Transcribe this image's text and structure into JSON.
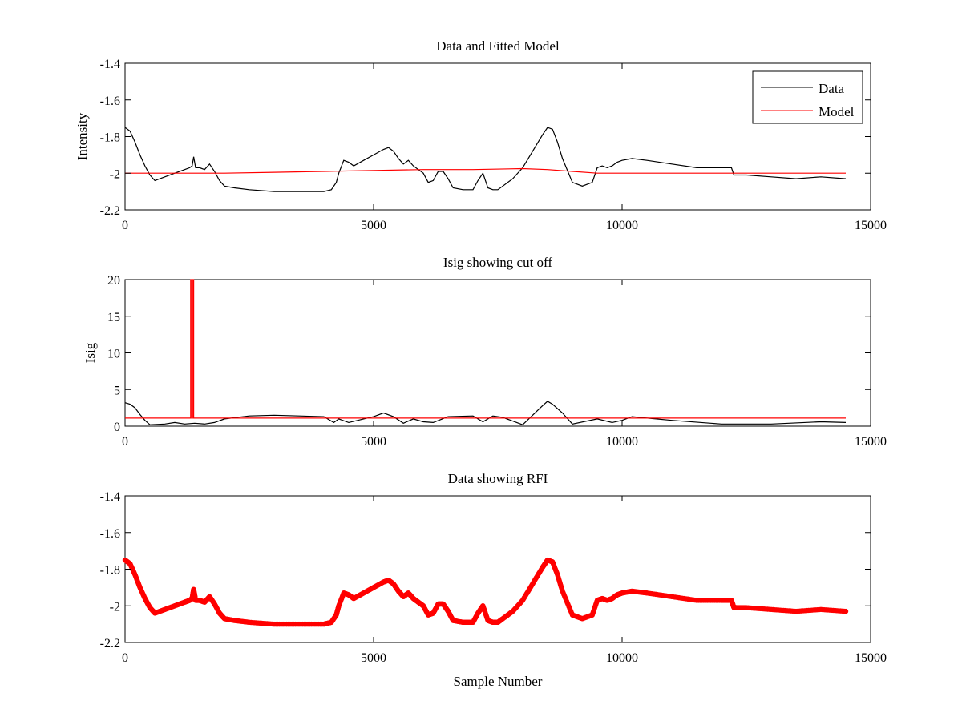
{
  "chart_data": [
    {
      "type": "line",
      "title": "Data and Fitted Model",
      "xlabel": "",
      "ylabel": "Intensity",
      "xlim": [
        0,
        15000
      ],
      "ylim": [
        -2.2,
        -1.4
      ],
      "xticks": [
        0,
        5000,
        10000,
        15000
      ],
      "xtick_labels": [
        "0",
        "5000",
        "10000",
        "15000"
      ],
      "yticks": [
        -2.2,
        -2.0,
        -1.8,
        -1.6,
        -1.4
      ],
      "ytick_labels": [
        "-2.2",
        "-2",
        "-1.8",
        "-1.6",
        "-1.4"
      ],
      "grid": false,
      "legend": "top-right",
      "series": [
        {
          "name": "Data",
          "color": "#000000",
          "x": [
            0,
            100,
            200,
            300,
            400,
            500,
            600,
            800,
            1000,
            1200,
            1300,
            1350,
            1380,
            1420,
            1500,
            1600,
            1700,
            1800,
            1900,
            2000,
            2200,
            2500,
            3000,
            3500,
            4000,
            4150,
            4250,
            4300,
            4400,
            4500,
            4600,
            4800,
            5000,
            5200,
            5300,
            5400,
            5500,
            5600,
            5700,
            5800,
            5900,
            6000,
            6100,
            6200,
            6300,
            6400,
            6500,
            6600,
            6800,
            7000,
            7100,
            7200,
            7300,
            7400,
            7500,
            7600,
            7800,
            8000,
            8200,
            8400,
            8500,
            8600,
            8700,
            8800,
            9000,
            9200,
            9400,
            9500,
            9600,
            9700,
            9800,
            9900,
            10000,
            10200,
            10500,
            11000,
            11500,
            12000,
            12200,
            12250,
            12300,
            12500,
            13000,
            13500,
            14000,
            14500
          ],
          "y": [
            -1.75,
            -1.77,
            -1.83,
            -1.9,
            -1.96,
            -2.01,
            -2.04,
            -2.02,
            -2.0,
            -1.98,
            -1.97,
            -1.96,
            -1.91,
            -1.97,
            -1.97,
            -1.98,
            -1.95,
            -1.99,
            -2.04,
            -2.07,
            -2.08,
            -2.09,
            -2.1,
            -2.1,
            -2.1,
            -2.09,
            -2.05,
            -2.0,
            -1.93,
            -1.94,
            -1.96,
            -1.93,
            -1.9,
            -1.87,
            -1.86,
            -1.88,
            -1.92,
            -1.95,
            -1.93,
            -1.96,
            -1.98,
            -2.0,
            -2.05,
            -2.04,
            -1.99,
            -1.99,
            -2.03,
            -2.08,
            -2.09,
            -2.09,
            -2.04,
            -2.0,
            -2.08,
            -2.09,
            -2.09,
            -2.07,
            -2.03,
            -1.97,
            -1.88,
            -1.79,
            -1.75,
            -1.76,
            -1.83,
            -1.92,
            -2.05,
            -2.07,
            -2.05,
            -1.97,
            -1.96,
            -1.97,
            -1.96,
            -1.94,
            -1.93,
            -1.92,
            -1.93,
            -1.95,
            -1.97,
            -1.97,
            -1.97,
            -2.01,
            -2.01,
            -2.01,
            -2.02,
            -2.03,
            -2.02,
            -2.03
          ]
        },
        {
          "name": "Model",
          "color": "#ff0000",
          "x": [
            0,
            1000,
            2000,
            3000,
            4000,
            5000,
            6000,
            7000,
            8000,
            8500,
            9000,
            9500,
            10000,
            11000,
            12000,
            13000,
            14500
          ],
          "y": [
            -2.0,
            -2.0,
            -2.0,
            -1.995,
            -1.99,
            -1.985,
            -1.98,
            -1.98,
            -1.975,
            -1.98,
            -1.99,
            -2.0,
            -2.0,
            -2.0,
            -2.0,
            -2.0,
            -2.0
          ]
        }
      ]
    },
    {
      "type": "line",
      "title": "Isig showing cut off",
      "xlabel": "",
      "ylabel": "Isig",
      "xlim": [
        0,
        15000
      ],
      "ylim": [
        0,
        20
      ],
      "xticks": [
        0,
        5000,
        10000,
        15000
      ],
      "xtick_labels": [
        "0",
        "5000",
        "10000",
        "15000"
      ],
      "yticks": [
        0,
        5,
        10,
        15,
        20
      ],
      "ytick_labels": [
        "0",
        "5",
        "10",
        "15",
        "20"
      ],
      "grid": false,
      "series": [
        {
          "color": "#000000",
          "x": [
            0,
            100,
            200,
            300,
            400,
            500,
            800,
            1000,
            1200,
            1400,
            1600,
            1800,
            2000,
            2500,
            3000,
            3500,
            4000,
            4200,
            4300,
            4500,
            4800,
            5000,
            5200,
            5400,
            5600,
            5800,
            6000,
            6200,
            6500,
            7000,
            7200,
            7400,
            7600,
            8000,
            8200,
            8400,
            8500,
            8600,
            8800,
            9000,
            9500,
            9800,
            10000,
            10200,
            11000,
            12000,
            13000,
            14000,
            14500
          ],
          "y": [
            3.2,
            3.0,
            2.5,
            1.6,
            0.8,
            0.2,
            0.3,
            0.5,
            0.3,
            0.4,
            0.3,
            0.5,
            1.0,
            1.4,
            1.5,
            1.4,
            1.3,
            0.5,
            1.0,
            0.5,
            1.0,
            1.3,
            1.8,
            1.3,
            0.4,
            1.0,
            0.6,
            0.5,
            1.3,
            1.4,
            0.6,
            1.4,
            1.2,
            0.2,
            1.5,
            2.8,
            3.4,
            3.0,
            1.8,
            0.3,
            1.0,
            0.5,
            0.8,
            1.3,
            0.8,
            0.3,
            0.3,
            0.6,
            0.5
          ]
        },
        {
          "color": "#ff0000",
          "x": [
            0,
            1320,
            1320,
            1340,
            1340,
            1360,
            1360,
            1380,
            1380,
            14500
          ],
          "y": [
            1.1,
            1.1,
            20,
            20,
            1.1,
            1.1,
            20,
            20,
            1.1,
            1.1
          ]
        }
      ]
    },
    {
      "type": "scatter",
      "title": "Data showing RFI",
      "xlabel": "Sample Number",
      "ylabel": "",
      "xlim": [
        0,
        15000
      ],
      "ylim": [
        -2.2,
        -1.4
      ],
      "xticks": [
        0,
        5000,
        10000,
        15000
      ],
      "xtick_labels": [
        "0",
        "5000",
        "10000",
        "15000"
      ],
      "yticks": [
        -2.2,
        -2.0,
        -1.8,
        -1.6,
        -1.4
      ],
      "ytick_labels": [
        "-2.2",
        "-2",
        "-1.8",
        "-1.6",
        "-1.4"
      ],
      "grid": false,
      "series": [
        {
          "color": "#ff0000",
          "x": [
            0,
            100,
            200,
            300,
            400,
            500,
            600,
            800,
            1000,
            1200,
            1300,
            1350,
            1380,
            1420,
            1500,
            1600,
            1700,
            1800,
            1900,
            2000,
            2200,
            2500,
            3000,
            3500,
            4000,
            4150,
            4250,
            4300,
            4400,
            4500,
            4600,
            4800,
            5000,
            5200,
            5300,
            5400,
            5500,
            5600,
            5700,
            5800,
            5900,
            6000,
            6100,
            6200,
            6300,
            6400,
            6500,
            6600,
            6800,
            7000,
            7100,
            7200,
            7300,
            7400,
            7500,
            7600,
            7800,
            8000,
            8200,
            8400,
            8500,
            8600,
            8700,
            8800,
            9000,
            9200,
            9400,
            9500,
            9600,
            9700,
            9800,
            9900,
            10000,
            10200,
            10500,
            11000,
            11500,
            12000,
            12200,
            12250,
            12300,
            12500,
            13000,
            13500,
            14000,
            14500
          ],
          "y": [
            -1.75,
            -1.77,
            -1.83,
            -1.9,
            -1.96,
            -2.01,
            -2.04,
            -2.02,
            -2.0,
            -1.98,
            -1.97,
            -1.96,
            -1.91,
            -1.97,
            -1.97,
            -1.98,
            -1.95,
            -1.99,
            -2.04,
            -2.07,
            -2.08,
            -2.09,
            -2.1,
            -2.1,
            -2.1,
            -2.09,
            -2.05,
            -2.0,
            -1.93,
            -1.94,
            -1.96,
            -1.93,
            -1.9,
            -1.87,
            -1.86,
            -1.88,
            -1.92,
            -1.95,
            -1.93,
            -1.96,
            -1.98,
            -2.0,
            -2.05,
            -2.04,
            -1.99,
            -1.99,
            -2.03,
            -2.08,
            -2.09,
            -2.09,
            -2.04,
            -2.0,
            -2.08,
            -2.09,
            -2.09,
            -2.07,
            -2.03,
            -1.97,
            -1.88,
            -1.79,
            -1.75,
            -1.76,
            -1.83,
            -1.92,
            -2.05,
            -2.07,
            -2.05,
            -1.97,
            -1.96,
            -1.97,
            -1.96,
            -1.94,
            -1.93,
            -1.92,
            -1.93,
            -1.95,
            -1.97,
            -1.97,
            -1.97,
            -2.01,
            -2.01,
            -2.01,
            -2.02,
            -2.03,
            -2.02,
            -2.03
          ]
        }
      ]
    }
  ]
}
